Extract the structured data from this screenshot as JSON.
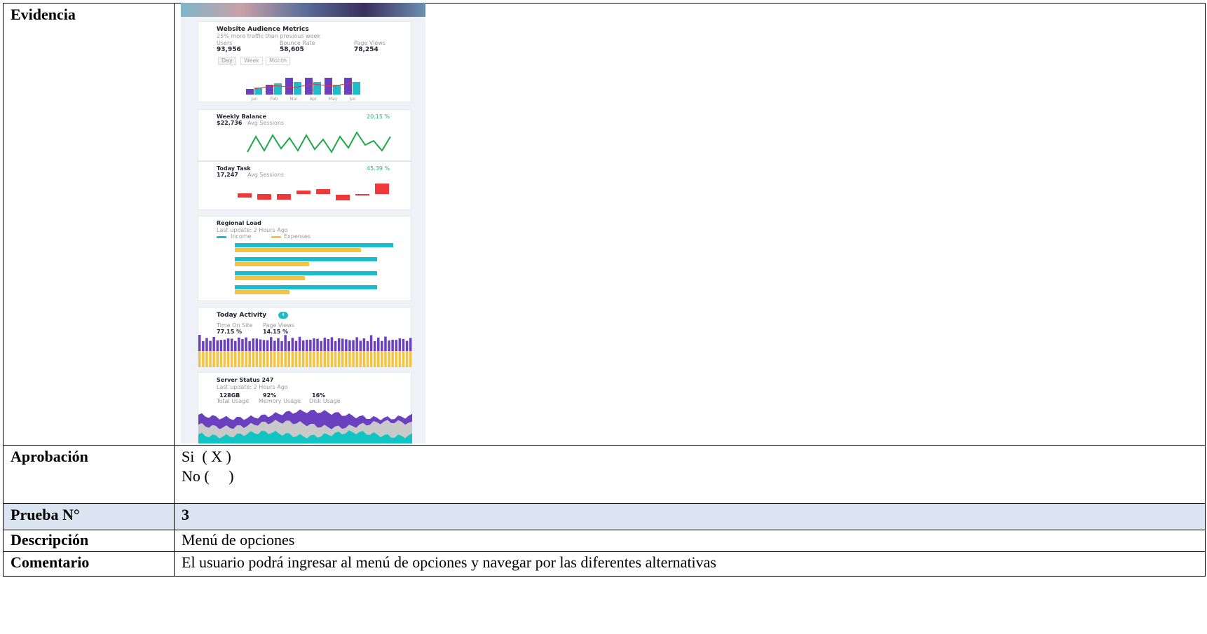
{
  "evidence": {
    "label": "Evidencia",
    "screenshot": {
      "audience": {
        "title": "Website Audience Metrics",
        "subtitle": "25% more traffic than previous week",
        "metrics": [
          {
            "label": "Users",
            "value": "93,956"
          },
          {
            "label": "Bounce Rate",
            "value": "58,605"
          },
          {
            "label": "Page Views",
            "value": "78,254"
          }
        ],
        "tabs": [
          "Day",
          "Week",
          "Month"
        ],
        "months": [
          "Jan",
          "Feb",
          "Mar",
          "Apr",
          "May",
          "Jun"
        ]
      },
      "balance": {
        "title": "Weekly Balance",
        "change": "20.15 %",
        "amount": "$22,736",
        "caption": "Avg Sessions"
      },
      "task": {
        "title": "Today Task",
        "change": "45.39 %",
        "amount": "17,247",
        "caption": "Avg Sessions"
      },
      "regional": {
        "title": "Regional Load",
        "subtitle": "Last update: 2 Hours Ago",
        "legend": [
          "Income",
          "Expenses"
        ]
      },
      "activity": {
        "title": "Today Activity",
        "badge": "4",
        "metrics": [
          {
            "label": "Time On Site",
            "value": "77.15 %"
          },
          {
            "label": "Page Views",
            "value": "14.15 %"
          }
        ]
      },
      "server": {
        "title": "Server Status 247",
        "subtitle": "Last update: 2 Hours Ago",
        "metrics": [
          {
            "value": "128GB",
            "label": "Total Usage"
          },
          {
            "value": "92%",
            "label": "Memory Usage"
          },
          {
            "value": "16%",
            "label": "Disk Usage"
          }
        ]
      }
    }
  },
  "approval": {
    "label": "Aprobación",
    "lines": [
      "Si  ( X )",
      "No (     )"
    ]
  },
  "table": {
    "rows": [
      {
        "label": "Prueba N°",
        "value": "3"
      },
      {
        "label": "Descripción",
        "value": "Menú de opciones"
      },
      {
        "label": "Comentario",
        "value": "El usuario podrá ingresar al menú de opciones y navegar por las diferentes alternativas"
      }
    ]
  }
}
